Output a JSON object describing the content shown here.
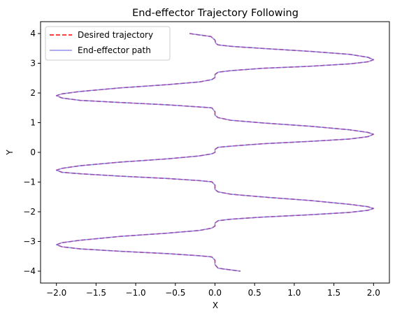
{
  "chart_data": {
    "type": "line",
    "title": "End-effector Trajectory Following",
    "xlabel": "X",
    "ylabel": "Y",
    "xlim": [
      -2.2,
      2.2
    ],
    "ylim": [
      -4.4,
      4.4
    ],
    "xticks": [
      -2.0,
      -1.5,
      -1.0,
      -0.5,
      0.0,
      0.5,
      1.0,
      1.5,
      2.0
    ],
    "xtick_labels": [
      "−2.0",
      "−1.5",
      "−1.0",
      "−0.5",
      "0.0",
      "0.5",
      "1.0",
      "1.5",
      "2.0"
    ],
    "yticks": [
      -4,
      -3,
      -2,
      -1,
      0,
      1,
      2,
      3,
      4
    ],
    "ytick_labels": [
      "−4",
      "−3",
      "−2",
      "−1",
      "0",
      "1",
      "2",
      "3",
      "4"
    ],
    "grid": false,
    "legend_position": "top-left",
    "series": [
      {
        "name": "Desired trajectory",
        "color": "#ff0000",
        "style": "dashed",
        "x": [
          -0.32,
          -0.05,
          0.0,
          0.01,
          0.04,
          0.2,
          0.6,
          1.2,
          1.7,
          1.93,
          2.0,
          1.93,
          1.7,
          1.2,
          0.6,
          0.2,
          0.04,
          0.0,
          0.0,
          -0.04,
          -0.2,
          -0.6,
          -1.2,
          -1.7,
          -1.93,
          -2.0,
          -1.93,
          -1.7,
          -1.2,
          -0.6,
          -0.2,
          -0.04,
          0.0,
          0.0,
          0.04,
          0.2,
          0.6,
          1.2,
          1.7,
          1.93,
          2.0,
          1.93,
          1.7,
          1.2,
          0.6,
          0.2,
          0.04,
          0.0,
          0.0,
          -0.04,
          -0.2,
          -0.6,
          -1.2,
          -1.7,
          -1.93,
          -2.0,
          -1.93,
          -1.7,
          -1.2,
          -0.6,
          -0.2,
          -0.04,
          0.0,
          0.0,
          0.04,
          0.2,
          0.6,
          1.2,
          1.7,
          1.93,
          2.0,
          1.93,
          1.7,
          1.2,
          0.6,
          0.2,
          0.04,
          0.0,
          0.0,
          -0.04,
          -0.2,
          -0.6,
          -1.2,
          -1.7,
          -1.93,
          -2.0,
          -1.93,
          -1.7,
          -1.2,
          -0.6,
          -0.2,
          -0.04,
          0.0,
          0.0,
          0.04,
          0.32
        ],
        "y": [
          4.0,
          3.9,
          3.78,
          3.67,
          3.62,
          3.57,
          3.5,
          3.4,
          3.3,
          3.2,
          3.12,
          3.05,
          2.98,
          2.9,
          2.83,
          2.75,
          2.7,
          2.62,
          2.52,
          2.45,
          2.37,
          2.28,
          2.17,
          2.05,
          1.97,
          1.91,
          1.83,
          1.75,
          1.68,
          1.6,
          1.53,
          1.5,
          1.37,
          1.25,
          1.17,
          1.08,
          0.99,
          0.88,
          0.76,
          0.67,
          0.61,
          0.53,
          0.45,
          0.37,
          0.29,
          0.21,
          0.17,
          0.1,
          0.0,
          -0.05,
          -0.12,
          -0.22,
          -0.33,
          -0.45,
          -0.54,
          -0.6,
          -0.67,
          -0.72,
          -0.8,
          -0.88,
          -0.95,
          -0.99,
          -1.1,
          -1.25,
          -1.33,
          -1.41,
          -1.5,
          -1.62,
          -1.75,
          -1.83,
          -1.89,
          -1.95,
          -2.02,
          -2.1,
          -2.18,
          -2.25,
          -2.3,
          -2.38,
          -2.48,
          -2.55,
          -2.63,
          -2.72,
          -2.83,
          -2.96,
          -3.04,
          -3.11,
          -3.18,
          -3.25,
          -3.33,
          -3.41,
          -3.48,
          -3.52,
          -3.63,
          -3.78,
          -3.9,
          -4.0
        ]
      },
      {
        "name": "End-effector path",
        "color": "#6b6bf0",
        "style": "solid",
        "x": [
          -0.32,
          -0.05,
          0.0,
          0.01,
          0.04,
          0.2,
          0.6,
          1.2,
          1.7,
          1.93,
          2.0,
          1.93,
          1.7,
          1.2,
          0.6,
          0.2,
          0.04,
          0.0,
          0.0,
          -0.04,
          -0.2,
          -0.6,
          -1.2,
          -1.7,
          -1.93,
          -2.0,
          -1.93,
          -1.7,
          -1.2,
          -0.6,
          -0.2,
          -0.04,
          0.0,
          0.0,
          0.04,
          0.2,
          0.6,
          1.2,
          1.7,
          1.93,
          2.0,
          1.93,
          1.7,
          1.2,
          0.6,
          0.2,
          0.04,
          0.0,
          0.0,
          -0.04,
          -0.2,
          -0.6,
          -1.2,
          -1.7,
          -1.93,
          -2.0,
          -1.93,
          -1.7,
          -1.2,
          -0.6,
          -0.2,
          -0.04,
          0.0,
          0.0,
          0.04,
          0.2,
          0.6,
          1.2,
          1.7,
          1.93,
          2.0,
          1.93,
          1.7,
          1.2,
          0.6,
          0.2,
          0.04,
          0.0,
          0.0,
          -0.04,
          -0.2,
          -0.6,
          -1.2,
          -1.7,
          -1.93,
          -2.0,
          -1.93,
          -1.7,
          -1.2,
          -0.6,
          -0.2,
          -0.04,
          0.0,
          0.0,
          0.04,
          0.32
        ],
        "y": [
          4.0,
          3.9,
          3.78,
          3.67,
          3.62,
          3.57,
          3.5,
          3.4,
          3.3,
          3.2,
          3.12,
          3.05,
          2.98,
          2.9,
          2.83,
          2.75,
          2.7,
          2.62,
          2.52,
          2.45,
          2.37,
          2.28,
          2.17,
          2.05,
          1.97,
          1.91,
          1.83,
          1.75,
          1.68,
          1.6,
          1.53,
          1.5,
          1.37,
          1.25,
          1.17,
          1.08,
          0.99,
          0.88,
          0.76,
          0.67,
          0.61,
          0.53,
          0.45,
          0.37,
          0.29,
          0.21,
          0.17,
          0.1,
          0.0,
          -0.05,
          -0.12,
          -0.22,
          -0.33,
          -0.45,
          -0.54,
          -0.6,
          -0.67,
          -0.72,
          -0.8,
          -0.88,
          -0.95,
          -0.99,
          -1.1,
          -1.25,
          -1.33,
          -1.41,
          -1.5,
          -1.62,
          -1.75,
          -1.83,
          -1.89,
          -1.95,
          -2.02,
          -2.1,
          -2.18,
          -2.25,
          -2.3,
          -2.38,
          -2.48,
          -2.55,
          -2.63,
          -2.72,
          -2.83,
          -2.96,
          -3.04,
          -3.11,
          -3.18,
          -3.25,
          -3.33,
          -3.41,
          -3.48,
          -3.52,
          -3.63,
          -3.78,
          -3.9,
          -4.0
        ]
      }
    ]
  }
}
